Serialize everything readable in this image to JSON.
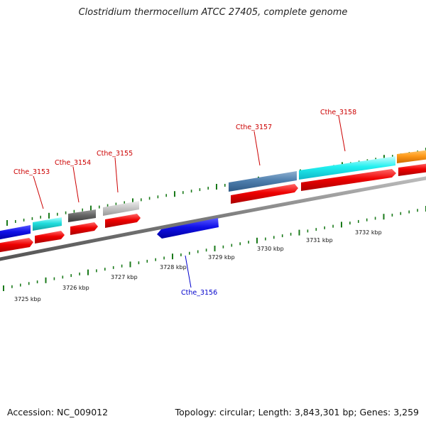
{
  "title": "Clostridium thermocellum ATCC 27405, complete genome",
  "accession": "Accession: NC_009012",
  "topology": "Topology: circular; Length: 3,843,301 bp; Genes: 3,259",
  "kbp_labels": [
    "3725 kbp",
    "3726 kbp",
    "3727 kbp",
    "3728 kbp",
    "3729 kbp",
    "3730 kbp",
    "3731 kbp",
    "3732 kbp"
  ],
  "gene_labels": [
    {
      "name": "Cthe_3153",
      "color": "#cc0000"
    },
    {
      "name": "Cthe_3154",
      "color": "#cc0000"
    },
    {
      "name": "Cthe_3155",
      "color": "#cc0000"
    },
    {
      "name": "Cthe_3157",
      "color": "#cc0000"
    },
    {
      "name": "Cthe_3158",
      "color": "#cc0000"
    },
    {
      "name": "Cthe_3156",
      "color": "#0000cc"
    }
  ],
  "colors": {
    "backbone": "#8a8a8a",
    "forward_cds": "#ee0000",
    "reverse_gene": "#1a1aee",
    "tick": "#1a7a1a"
  }
}
